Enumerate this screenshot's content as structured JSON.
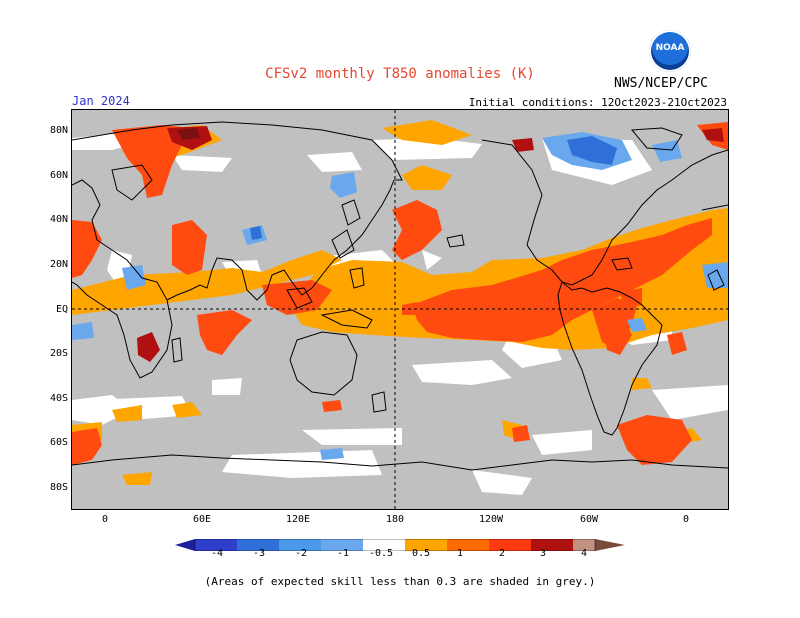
{
  "header": {
    "title": "CFSv2 monthly T850 anomalies (K)",
    "month": "Jan 2024",
    "initial_conditions": "Initial conditions: 12Oct2023-21Oct2023",
    "organization": "NWS/NCEP/CPC",
    "logo_text": "NOAA"
  },
  "axes": {
    "lat_labels": [
      "80N",
      "60N",
      "40N",
      "20N",
      "EQ",
      "20S",
      "40S",
      "60S",
      "80S"
    ],
    "lon_labels": [
      "0",
      "60E",
      "120E",
      "180",
      "120W",
      "60W",
      "0"
    ]
  },
  "colorbar": {
    "ticks": [
      "-4",
      "-3",
      "-2",
      "-1",
      "-0.5",
      "0.5",
      "1",
      "2",
      "3",
      "4"
    ],
    "colors": [
      "#1f1f9c",
      "#2e3fcc",
      "#2f6fd8",
      "#4a98e8",
      "#8fc0f0",
      "#ffffff",
      "#ffa500",
      "#ff6a00",
      "#ff3a10",
      "#c01a10",
      "#8b0000",
      "#c09080",
      "#7a4a3a"
    ]
  },
  "legend_colors": {
    "grey_skill": "#c0c0c0",
    "neutral": "#ffffff",
    "warm_1": "#ffa500",
    "warm_2": "#ff4a10",
    "warm_3": "#c01a10",
    "warm_4": "#8b0000",
    "cool_1": "#6aa8ee",
    "cool_2": "#2f6fd8"
  },
  "footnote": "(Areas of expected skill less than 0.3 are shaded in grey.)"
}
